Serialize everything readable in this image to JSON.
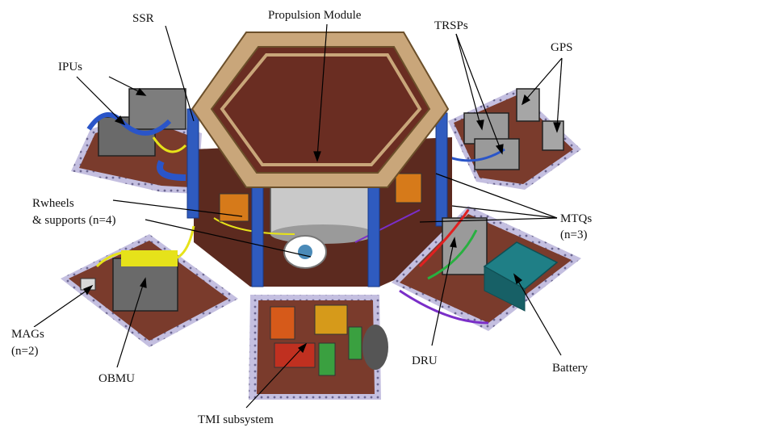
{
  "labels": {
    "ssr": "SSR",
    "propulsion": "Propulsion Module",
    "trsps": "TRSPs",
    "gps": "GPS",
    "ipus": "IPUs",
    "rwheels_1": "Rwheels",
    "rwheels_2": "& supports (n=4)",
    "mtqs_1": "MTQs",
    "mtqs_2": "(n=3)",
    "mags_1": "MAGs",
    "mags_2": "(n=2)",
    "obmu": "OBMU",
    "dru": "DRU",
    "battery": "Battery",
    "tmi": "TMI subsystem"
  },
  "colors": {
    "panel": "#7a3b2c",
    "panel_dark": "#5c2a1f",
    "frame_lavender": "#b9b4d8",
    "strut_blue": "#2f5bbf",
    "ring_tan": "#c9a67a",
    "harness_yellow": "#e6e21a",
    "battery_teal": "#1f7f86",
    "equipment_gray": "#8a8a8a"
  }
}
